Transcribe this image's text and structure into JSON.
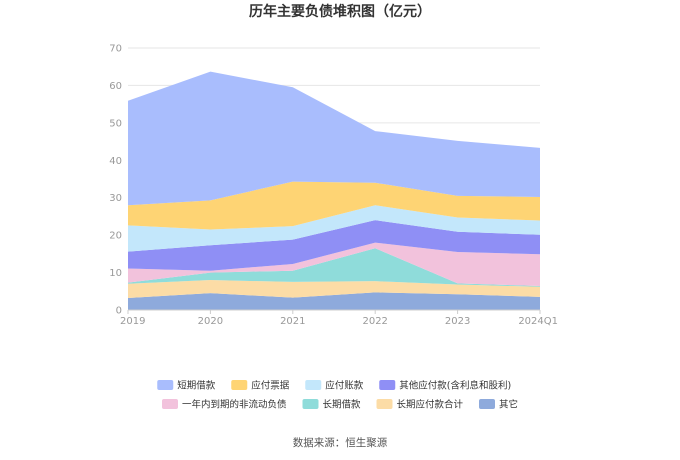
{
  "chart_data": {
    "type": "area",
    "stacked": true,
    "title": "历年主要负债堆积图（亿元）",
    "categories": [
      "2019",
      "2020",
      "2021",
      "2022",
      "2023",
      "2024Q1"
    ],
    "ylim": [
      0,
      70
    ],
    "yticks": [
      0,
      10,
      20,
      30,
      40,
      50,
      60,
      70
    ],
    "grid": true,
    "legend_position": "bottom",
    "series": [
      {
        "name": "其它",
        "color": "#8eaadc",
        "values": [
          3.2,
          4.5,
          3.3,
          4.7,
          4.2,
          3.5
        ]
      },
      {
        "name": "长期应付款合计",
        "color": "#fcdca6",
        "values": [
          3.8,
          3.5,
          4.2,
          3.0,
          2.6,
          2.7
        ]
      },
      {
        "name": "长期借款",
        "color": "#8fdcda",
        "values": [
          0.3,
          2.0,
          3.0,
          8.8,
          0.3,
          0.2
        ]
      },
      {
        "name": "一年内到期的非流动负债",
        "color": "#f2c2dc",
        "values": [
          3.8,
          0.5,
          1.8,
          1.5,
          8.4,
          8.5
        ]
      },
      {
        "name": "其他应付款(含利息和股利)",
        "color": "#8f8ff5",
        "values": [
          4.5,
          6.8,
          6.5,
          6.0,
          5.4,
          5.2
        ]
      },
      {
        "name": "应付账款",
        "color": "#c3e7fb",
        "values": [
          7.0,
          4.2,
          3.6,
          4.0,
          3.8,
          3.8
        ]
      },
      {
        "name": "应付票据",
        "color": "#fed474",
        "values": [
          5.4,
          7.8,
          11.9,
          6.0,
          5.8,
          6.3
        ]
      },
      {
        "name": "短期借款",
        "color": "#a9bdfd",
        "values": [
          27.9,
          34.4,
          25.2,
          13.8,
          14.7,
          13.1
        ]
      }
    ],
    "legend_order": [
      "短期借款",
      "应付票据",
      "应付账款",
      "其他应付款(含利息和股利)",
      "一年内到期的非流动负债",
      "长期借款",
      "长期应付款合计",
      "其它"
    ],
    "source": "数据来源：恒生聚源"
  }
}
